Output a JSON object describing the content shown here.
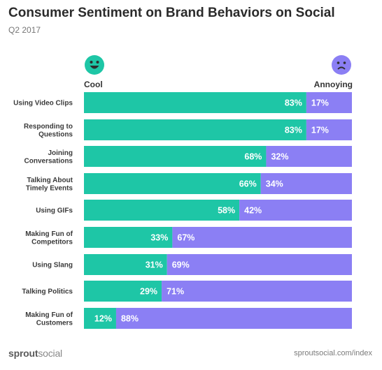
{
  "title": "Consumer Sentiment on Brand Behaviors on Social",
  "subtitle": "Q2 2017",
  "colors": {
    "cool": "#1ec6a6",
    "annoying": "#8b7ff4"
  },
  "legend": {
    "cool_label": "Cool",
    "annoying_label": "Annoying",
    "cool_icon": "smiling-face-icon",
    "annoying_icon": "frowning-face-icon"
  },
  "footer": {
    "brand_part1": "sprout",
    "brand_part2": "social",
    "url": "sproutsocial.com/index"
  },
  "chart_data": {
    "type": "bar",
    "orientation": "horizontal",
    "stacked": true,
    "categories": [
      [
        "Using Video Clips"
      ],
      [
        "Responding to",
        "Questions"
      ],
      [
        "Joining",
        "Conversations"
      ],
      [
        "Talking About",
        "Timely Events"
      ],
      [
        "Using GIFs"
      ],
      [
        "Making Fun of",
        "Competitors"
      ],
      [
        "Using Slang"
      ],
      [
        "Talking Politics"
      ],
      [
        "Making Fun of",
        "Customers"
      ]
    ],
    "series": [
      {
        "name": "Cool",
        "values": [
          83,
          83,
          68,
          66,
          58,
          33,
          31,
          29,
          12
        ]
      },
      {
        "name": "Annoying",
        "values": [
          17,
          17,
          32,
          34,
          42,
          67,
          69,
          71,
          88
        ]
      }
    ],
    "value_suffix": "%",
    "xlim": [
      0,
      100
    ],
    "grid": false
  }
}
